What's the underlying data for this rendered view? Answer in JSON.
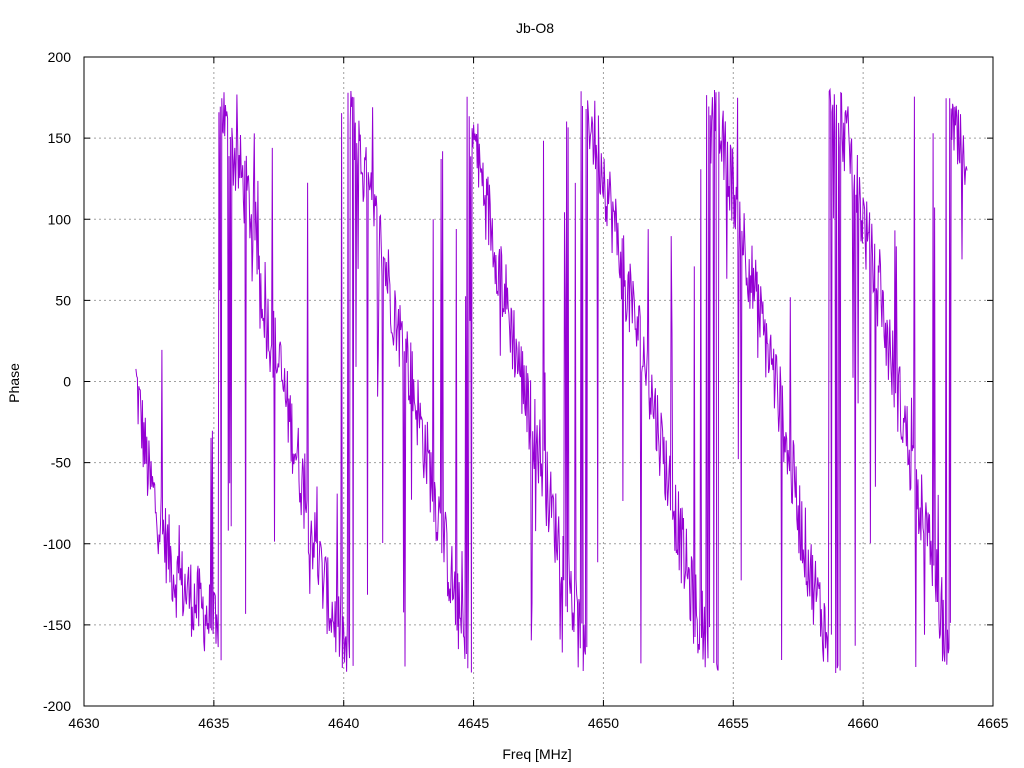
{
  "chart_data": {
    "type": "line",
    "title": "Jb-O8",
    "xlabel": "Freq [MHz]",
    "ylabel": "Phase",
    "xlim": [
      4630,
      4665
    ],
    "ylim": [
      -200,
      200
    ],
    "xticks": [
      4630,
      4635,
      4640,
      4645,
      4650,
      4655,
      4660,
      4665
    ],
    "yticks": [
      -200,
      -150,
      -100,
      -50,
      0,
      50,
      100,
      150,
      200
    ],
    "grid": true,
    "series_color": "#9400d3",
    "series": [
      {
        "x": [
          4632.0,
          4632.5,
          4633.0,
          4633.5,
          4634.0,
          4634.5,
          4635.0,
          4635.5,
          4636.0,
          4636.5,
          4637.0,
          4637.5,
          4638.0,
          4638.5,
          4639.0,
          4639.5,
          4640.0,
          4640.5,
          4641.0,
          4641.5,
          4642.0,
          4642.5,
          4643.0,
          4643.5,
          4644.0,
          4644.5,
          4645.0,
          4645.5,
          4646.0,
          4646.5,
          4647.0,
          4647.5,
          4648.0,
          4648.5,
          4649.0,
          4649.5,
          4650.0,
          4650.5,
          4651.0,
          4651.5,
          4652.0,
          4652.5,
          4653.0,
          4653.5,
          4654.0,
          4654.5,
          4655.0,
          4655.5,
          4656.0,
          4656.5,
          4657.0,
          4657.5,
          4658.0,
          4658.5,
          4659.0,
          4659.5,
          4660.0,
          4660.5,
          4661.0,
          4661.5,
          4662.0,
          4662.5,
          4663.0,
          4663.5,
          4664.0
        ],
        "y": [
          0,
          -60,
          -90,
          -120,
          -130,
          -140,
          -150,
          150,
          130,
          100,
          40,
          10,
          -30,
          -70,
          -110,
          -140,
          -160,
          150,
          110,
          80,
          40,
          10,
          -30,
          -70,
          -110,
          -150,
          150,
          110,
          70,
          30,
          -10,
          -40,
          -80,
          -110,
          -150,
          160,
          130,
          90,
          50,
          20,
          -20,
          -60,
          -100,
          -140,
          -160,
          150,
          120,
          80,
          40,
          10,
          -30,
          -80,
          -120,
          -150,
          170,
          140,
          100,
          60,
          20,
          -20,
          -60,
          -100,
          -140,
          150,
          130
        ]
      }
    ]
  }
}
